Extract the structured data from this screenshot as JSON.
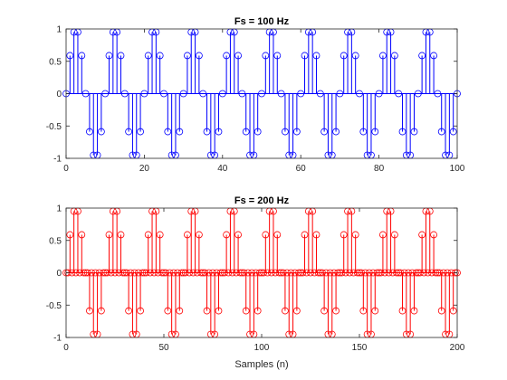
{
  "chart_data": [
    {
      "type": "stem",
      "title": "Fs = 100 Hz",
      "xlabel": "",
      "ylabel": "",
      "xlim": [
        0,
        100
      ],
      "ylim": [
        -1,
        1
      ],
      "xticks": [
        0,
        20,
        40,
        60,
        80,
        100
      ],
      "yticks": [
        -1,
        -0.5,
        0,
        0.5,
        1
      ],
      "x_tick_labels": [
        "0",
        "20",
        "40",
        "60",
        "80",
        "100"
      ],
      "y_tick_labels": [
        "-1",
        "-0.5",
        "0",
        "0.5",
        "1"
      ],
      "color": "#0000ff",
      "series": [
        {
          "x": [
            0,
            1,
            2,
            3,
            4,
            5,
            6,
            7,
            8,
            9,
            10,
            11,
            12,
            13,
            14,
            15,
            16,
            17,
            18,
            19,
            20,
            21,
            22,
            23,
            24,
            25,
            26,
            27,
            28,
            29,
            30,
            31,
            32,
            33,
            34,
            35,
            36,
            37,
            38,
            39,
            40,
            41,
            42,
            43,
            44,
            45,
            46,
            47,
            48,
            49,
            50,
            51,
            52,
            53,
            54,
            55,
            56,
            57,
            58,
            59,
            60,
            61,
            62,
            63,
            64,
            65,
            66,
            67,
            68,
            69,
            70,
            71,
            72,
            73,
            74,
            75,
            76,
            77,
            78,
            79,
            80,
            81,
            82,
            83,
            84,
            85,
            86,
            87,
            88,
            89,
            90,
            91,
            92,
            93,
            94,
            95,
            96,
            97,
            98,
            99,
            100
          ],
          "y": [
            0,
            0.588,
            0.951,
            0.951,
            0.588,
            0,
            -0.588,
            -0.951,
            -0.951,
            -0.588,
            0,
            0.588,
            0.951,
            0.951,
            0.588,
            0,
            -0.588,
            -0.951,
            -0.951,
            -0.588,
            0,
            0.588,
            0.951,
            0.951,
            0.588,
            0,
            -0.588,
            -0.951,
            -0.951,
            -0.588,
            0,
            0.588,
            0.951,
            0.951,
            0.588,
            0,
            -0.588,
            -0.951,
            -0.951,
            -0.588,
            0,
            0.588,
            0.951,
            0.951,
            0.588,
            0,
            -0.588,
            -0.951,
            -0.951,
            -0.588,
            0,
            0.588,
            0.951,
            0.951,
            0.588,
            0,
            -0.588,
            -0.951,
            -0.951,
            -0.588,
            0,
            0.588,
            0.951,
            0.951,
            0.588,
            0,
            -0.588,
            -0.951,
            -0.951,
            -0.588,
            0,
            0.588,
            0.951,
            0.951,
            0.588,
            0,
            -0.588,
            -0.951,
            -0.951,
            -0.588,
            0,
            0.588,
            0.951,
            0.951,
            0.588,
            0,
            -0.588,
            -0.951,
            -0.951,
            -0.588,
            0,
            0.588,
            0.951,
            0.951,
            0.588,
            0,
            -0.588,
            -0.951,
            -0.951,
            -0.588,
            0
          ]
        }
      ]
    },
    {
      "type": "stem",
      "title": "Fs = 200 Hz",
      "xlabel": "Samples (n)",
      "ylabel": "",
      "xlim": [
        0,
        200
      ],
      "ylim": [
        -1,
        1
      ],
      "xticks": [
        0,
        50,
        100,
        150,
        200
      ],
      "yticks": [
        -1,
        -0.5,
        0,
        0.5,
        1
      ],
      "x_tick_labels": [
        "0",
        "50",
        "100",
        "150",
        "200"
      ],
      "y_tick_labels": [
        "-1",
        "-0.5",
        "0",
        "0.5",
        "1"
      ],
      "color": "#ff0000",
      "series": [
        {
          "x": [
            0,
            1,
            2,
            3,
            4,
            5,
            6,
            7,
            8,
            9,
            10,
            11,
            12,
            13,
            14,
            15,
            16,
            17,
            18,
            19,
            20,
            21,
            22,
            23,
            24,
            25,
            26,
            27,
            28,
            29,
            30,
            31,
            32,
            33,
            34,
            35,
            36,
            37,
            38,
            39,
            40,
            41,
            42,
            43,
            44,
            45,
            46,
            47,
            48,
            49,
            50,
            51,
            52,
            53,
            54,
            55,
            56,
            57,
            58,
            59,
            60,
            61,
            62,
            63,
            64,
            65,
            66,
            67,
            68,
            69,
            70,
            71,
            72,
            73,
            74,
            75,
            76,
            77,
            78,
            79,
            80,
            81,
            82,
            83,
            84,
            85,
            86,
            87,
            88,
            89,
            90,
            91,
            92,
            93,
            94,
            95,
            96,
            97,
            98,
            99,
            100,
            101,
            102,
            103,
            104,
            105,
            106,
            107,
            108,
            109,
            110,
            111,
            112,
            113,
            114,
            115,
            116,
            117,
            118,
            119,
            120,
            121,
            122,
            123,
            124,
            125,
            126,
            127,
            128,
            129,
            130,
            131,
            132,
            133,
            134,
            135,
            136,
            137,
            138,
            139,
            140,
            141,
            142,
            143,
            144,
            145,
            146,
            147,
            148,
            149,
            150,
            151,
            152,
            153,
            154,
            155,
            156,
            157,
            158,
            159,
            160,
            161,
            162,
            163,
            164,
            165,
            166,
            167,
            168,
            169,
            170,
            171,
            172,
            173,
            174,
            175,
            176,
            177,
            178,
            179,
            180,
            181,
            182,
            183,
            184,
            185,
            186,
            187,
            188,
            189,
            190,
            191,
            192,
            193,
            194,
            195,
            196,
            197,
            198,
            199,
            200
          ],
          "y": [
            0,
            0,
            0.588,
            0,
            0.951,
            0,
            0.951,
            0,
            0.588,
            0,
            0,
            0,
            -0.588,
            0,
            -0.951,
            0,
            -0.951,
            0,
            -0.588,
            0,
            0,
            0,
            0.588,
            0,
            0.951,
            0,
            0.951,
            0,
            0.588,
            0,
            0,
            0,
            -0.588,
            0,
            -0.951,
            0,
            -0.951,
            0,
            -0.588,
            0,
            0,
            0,
            0.588,
            0,
            0.951,
            0,
            0.951,
            0,
            0.588,
            0,
            0,
            0,
            -0.588,
            0,
            -0.951,
            0,
            -0.951,
            0,
            -0.588,
            0,
            0,
            0,
            0.588,
            0,
            0.951,
            0,
            0.951,
            0,
            0.588,
            0,
            0,
            0,
            -0.588,
            0,
            -0.951,
            0,
            -0.951,
            0,
            -0.588,
            0,
            0,
            0,
            0.588,
            0,
            0.951,
            0,
            0.951,
            0,
            0.588,
            0,
            0,
            0,
            -0.588,
            0,
            -0.951,
            0,
            -0.951,
            0,
            -0.588,
            0,
            0,
            0,
            0.588,
            0,
            0.951,
            0,
            0.951,
            0,
            0.588,
            0,
            0,
            0,
            -0.588,
            0,
            -0.951,
            0,
            -0.951,
            0,
            -0.588,
            0,
            0,
            0,
            0.588,
            0,
            0.951,
            0,
            0.951,
            0,
            0.588,
            0,
            0,
            0,
            -0.588,
            0,
            -0.951,
            0,
            -0.951,
            0,
            -0.588,
            0,
            0,
            0,
            0.588,
            0,
            0.951,
            0,
            0.951,
            0,
            0.588,
            0,
            0,
            0,
            -0.588,
            0,
            -0.951,
            0,
            -0.951,
            0,
            -0.588,
            0,
            0,
            0,
            0.588,
            0,
            0.951,
            0,
            0.951,
            0,
            0.588,
            0,
            0,
            0,
            -0.588,
            0,
            -0.951,
            0,
            -0.951,
            0,
            -0.588,
            0,
            0,
            0,
            0.588,
            0,
            0.951,
            0,
            0.951,
            0,
            0.588,
            0,
            0,
            0,
            -0.588,
            0,
            -0.951,
            0,
            -0.951,
            0,
            -0.588,
            0,
            0
          ]
        }
      ]
    }
  ]
}
